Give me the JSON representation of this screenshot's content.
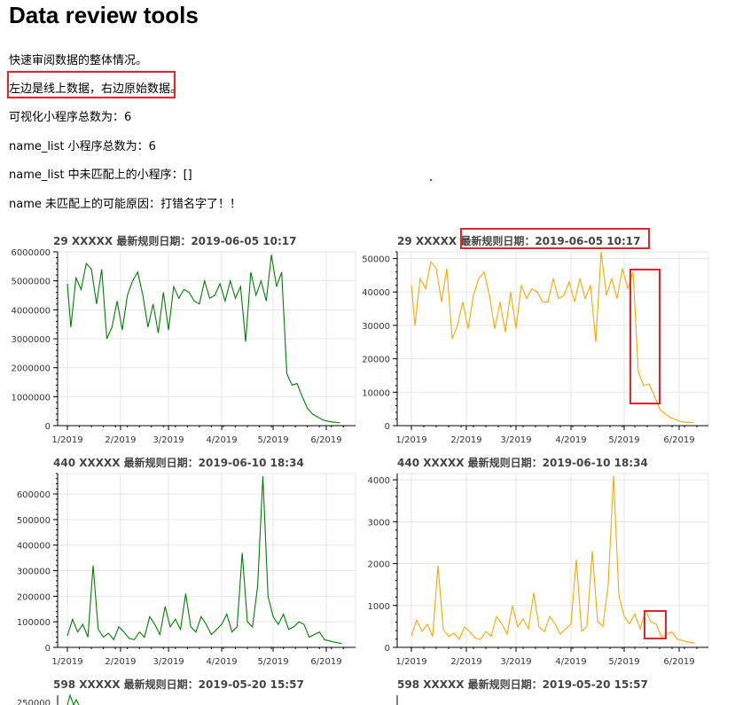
{
  "header": {
    "title": "Data review tools",
    "info": [
      "快速审阅数据的整体情况。",
      "左边是线上数据，右边原始数据。",
      "可视化小程序总数为：6",
      "name_list 小程序总数为：6",
      "name_list 中未匹配上的小程序：[]",
      "name 未匹配上的可能原因：打错名字了！！"
    ]
  },
  "colors": {
    "left_series": "#008000",
    "right_series": "#FFA500",
    "annotation": "#e8212b",
    "grid": "#e5e5e5"
  },
  "chart_data": [
    {
      "type": "line",
      "title": "29  XXXXX  最新规则日期：2019-06-05 10:17",
      "x_ticks": [
        "1/2019",
        "2/2019",
        "3/2019",
        "4/2019",
        "5/2019",
        "6/2019"
      ],
      "ylim": [
        0,
        6000000
      ],
      "y_ticks": [
        "0",
        "1000000",
        "2000000",
        "3000000",
        "4000000",
        "5000000",
        "6000000"
      ],
      "grid": true,
      "series": [
        {
          "color": "#008000",
          "x": [
            "2019-01-01",
            "2019-01-03",
            "2019-01-06",
            "2019-01-09",
            "2019-01-12",
            "2019-01-15",
            "2019-01-18",
            "2019-01-21",
            "2019-01-24",
            "2019-01-27",
            "2019-01-30",
            "2019-02-02",
            "2019-02-05",
            "2019-02-08",
            "2019-02-11",
            "2019-02-14",
            "2019-02-17",
            "2019-02-20",
            "2019-02-23",
            "2019-02-26",
            "2019-03-01",
            "2019-03-04",
            "2019-03-07",
            "2019-03-10",
            "2019-03-13",
            "2019-03-16",
            "2019-03-19",
            "2019-03-22",
            "2019-03-25",
            "2019-03-28",
            "2019-03-31",
            "2019-04-03",
            "2019-04-06",
            "2019-04-09",
            "2019-04-12",
            "2019-04-15",
            "2019-04-18",
            "2019-04-21",
            "2019-04-24",
            "2019-04-27",
            "2019-04-30",
            "2019-05-03",
            "2019-05-06",
            "2019-05-09",
            "2019-05-12",
            "2019-05-15",
            "2019-05-18",
            "2019-05-21",
            "2019-05-24",
            "2019-05-27",
            "2019-05-30",
            "2019-06-02",
            "2019-06-05",
            "2019-06-09"
          ],
          "y": [
            4900000,
            3400000,
            5100000,
            4700000,
            5600000,
            5400000,
            4200000,
            5400000,
            3000000,
            3400000,
            4300000,
            3300000,
            4500000,
            5000000,
            5300000,
            4500000,
            3400000,
            4200000,
            3200000,
            4600000,
            3300000,
            4800000,
            4400000,
            4700000,
            4600000,
            4300000,
            4200000,
            5000000,
            4400000,
            4500000,
            4900000,
            4300000,
            5000000,
            4400000,
            4800000,
            2900000,
            5300000,
            4500000,
            5000000,
            4300000,
            5900000,
            4800000,
            5300000,
            1800000,
            1400000,
            1450000,
            1000000,
            600000,
            400000,
            300000,
            200000,
            150000,
            120000,
            100000
          ]
        }
      ]
    },
    {
      "type": "line",
      "title": "29  XXXXX  最新规则日期：2019-06-05 10:17",
      "x_ticks": [
        "1/2019",
        "2/2019",
        "3/2019",
        "4/2019",
        "5/2019",
        "6/2019"
      ],
      "ylim": [
        0,
        52000
      ],
      "y_ticks": [
        "0",
        "10000",
        "20000",
        "30000",
        "40000",
        "50000"
      ],
      "grid": true,
      "series": [
        {
          "color": "#FFA500",
          "x": [
            "2019-01-01",
            "2019-01-03",
            "2019-01-06",
            "2019-01-09",
            "2019-01-12",
            "2019-01-15",
            "2019-01-18",
            "2019-01-21",
            "2019-01-24",
            "2019-01-27",
            "2019-01-30",
            "2019-02-02",
            "2019-02-05",
            "2019-02-08",
            "2019-02-11",
            "2019-02-14",
            "2019-02-17",
            "2019-02-20",
            "2019-02-23",
            "2019-02-26",
            "2019-03-01",
            "2019-03-04",
            "2019-03-07",
            "2019-03-10",
            "2019-03-13",
            "2019-03-16",
            "2019-03-19",
            "2019-03-22",
            "2019-03-25",
            "2019-03-28",
            "2019-03-31",
            "2019-04-03",
            "2019-04-06",
            "2019-04-09",
            "2019-04-12",
            "2019-04-15",
            "2019-04-18",
            "2019-04-21",
            "2019-04-24",
            "2019-04-27",
            "2019-04-30",
            "2019-05-03",
            "2019-05-06",
            "2019-05-09",
            "2019-05-12",
            "2019-05-15",
            "2019-05-18",
            "2019-05-21",
            "2019-05-24",
            "2019-05-27",
            "2019-05-30",
            "2019-06-02",
            "2019-06-05",
            "2019-06-09"
          ],
          "y": [
            42000,
            30000,
            44000,
            41000,
            49000,
            47000,
            37000,
            47000,
            26000,
            30000,
            37000,
            29000,
            39000,
            44000,
            46000,
            39000,
            29000,
            37000,
            28000,
            40000,
            29000,
            42000,
            38000,
            41000,
            40000,
            37000,
            37000,
            44000,
            38000,
            39000,
            43000,
            37000,
            44000,
            38000,
            42000,
            25000,
            52000,
            39000,
            44000,
            38000,
            47000,
            41000,
            46000,
            16000,
            12000,
            12500,
            9000,
            5000,
            3500,
            2500,
            1800,
            1200,
            1000,
            900
          ]
        }
      ]
    },
    {
      "type": "line",
      "title": "440  XXXXX  最新规则日期：2019-06-10 18:34",
      "x_ticks": [
        "1/2019",
        "2/2019",
        "3/2019",
        "4/2019",
        "5/2019",
        "6/2019"
      ],
      "ylim": [
        0,
        680000
      ],
      "y_ticks": [
        "0",
        "100000",
        "200000",
        "300000",
        "400000",
        "500000",
        "600000"
      ],
      "grid": true,
      "series": [
        {
          "color": "#008000",
          "x": [
            "2019-01-01",
            "2019-01-04",
            "2019-01-07",
            "2019-01-10",
            "2019-01-13",
            "2019-01-16",
            "2019-01-19",
            "2019-01-22",
            "2019-01-25",
            "2019-01-28",
            "2019-01-31",
            "2019-02-03",
            "2019-02-06",
            "2019-02-09",
            "2019-02-12",
            "2019-02-15",
            "2019-02-18",
            "2019-02-21",
            "2019-02-24",
            "2019-02-27",
            "2019-03-02",
            "2019-03-05",
            "2019-03-08",
            "2019-03-11",
            "2019-03-14",
            "2019-03-17",
            "2019-03-20",
            "2019-03-23",
            "2019-03-26",
            "2019-03-29",
            "2019-04-01",
            "2019-04-04",
            "2019-04-07",
            "2019-04-10",
            "2019-04-13",
            "2019-04-16",
            "2019-04-19",
            "2019-04-22",
            "2019-04-25",
            "2019-04-28",
            "2019-05-01",
            "2019-05-04",
            "2019-05-07",
            "2019-05-10",
            "2019-05-13",
            "2019-05-16",
            "2019-05-19",
            "2019-05-22",
            "2019-05-25",
            "2019-05-28",
            "2019-05-31",
            "2019-06-03",
            "2019-06-06",
            "2019-06-10"
          ],
          "y": [
            45000,
            110000,
            60000,
            90000,
            40000,
            320000,
            70000,
            40000,
            55000,
            30000,
            80000,
            60000,
            35000,
            30000,
            60000,
            40000,
            120000,
            90000,
            50000,
            160000,
            80000,
            110000,
            70000,
            210000,
            80000,
            60000,
            120000,
            90000,
            50000,
            70000,
            90000,
            130000,
            60000,
            80000,
            370000,
            100000,
            80000,
            240000,
            670000,
            200000,
            120000,
            90000,
            130000,
            70000,
            80000,
            100000,
            90000,
            40000,
            50000,
            60000,
            30000,
            25000,
            20000,
            15000
          ]
        }
      ]
    },
    {
      "type": "line",
      "title": "440  XXXXX  最新规则日期：2019-06-10 18:34",
      "x_ticks": [
        "1/2019",
        "2/2019",
        "3/2019",
        "4/2019",
        "5/2019",
        "6/2019"
      ],
      "ylim": [
        0,
        4150
      ],
      "y_ticks": [
        "0",
        "1000",
        "2000",
        "3000",
        "4000"
      ],
      "grid": true,
      "series": [
        {
          "color": "#FFA500",
          "x": [
            "2019-01-01",
            "2019-01-04",
            "2019-01-07",
            "2019-01-10",
            "2019-01-13",
            "2019-01-16",
            "2019-01-19",
            "2019-01-22",
            "2019-01-25",
            "2019-01-28",
            "2019-01-31",
            "2019-02-03",
            "2019-02-06",
            "2019-02-09",
            "2019-02-12",
            "2019-02-15",
            "2019-02-18",
            "2019-02-21",
            "2019-02-24",
            "2019-02-27",
            "2019-03-02",
            "2019-03-05",
            "2019-03-08",
            "2019-03-11",
            "2019-03-14",
            "2019-03-17",
            "2019-03-20",
            "2019-03-23",
            "2019-03-26",
            "2019-03-29",
            "2019-04-01",
            "2019-04-04",
            "2019-04-07",
            "2019-04-10",
            "2019-04-13",
            "2019-04-16",
            "2019-04-19",
            "2019-04-22",
            "2019-04-25",
            "2019-04-28",
            "2019-05-01",
            "2019-05-04",
            "2019-05-07",
            "2019-05-10",
            "2019-05-13",
            "2019-05-16",
            "2019-05-19",
            "2019-05-22",
            "2019-05-25",
            "2019-05-28",
            "2019-05-31",
            "2019-06-03",
            "2019-06-06",
            "2019-06-10"
          ],
          "y": [
            280,
            650,
            380,
            550,
            260,
            1950,
            430,
            260,
            340,
            190,
            490,
            370,
            220,
            190,
            380,
            260,
            740,
            560,
            320,
            990,
            490,
            680,
            440,
            1300,
            490,
            370,
            740,
            560,
            320,
            440,
            560,
            2100,
            380,
            500,
            2300,
            620,
            500,
            1500,
            4100,
            1250,
            740,
            560,
            800,
            440,
            880,
            620,
            560,
            250,
            310,
            370,
            190,
            160,
            130,
            100
          ]
        }
      ]
    }
  ],
  "footer_titles": [
    "598  XXXXX  最新规则日期：2019-05-20 15:57",
    "598  XXXXX  最新规则日期：2019-05-20 15:57"
  ],
  "footer_partial_ytick": "250000"
}
